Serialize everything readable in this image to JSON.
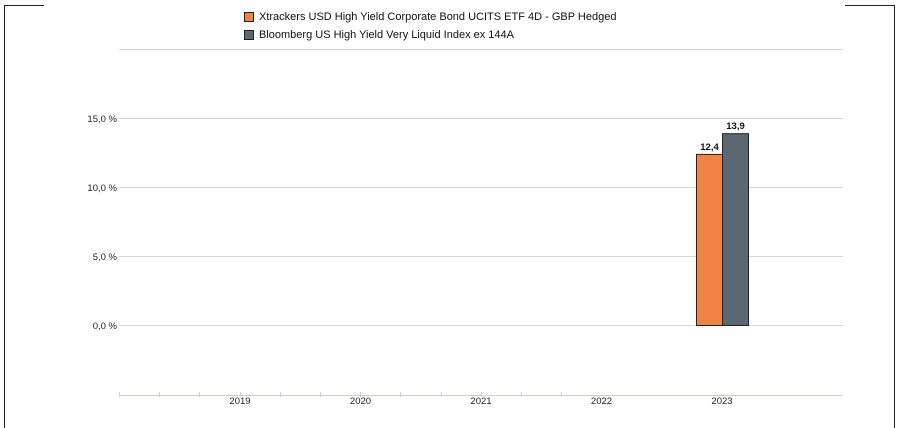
{
  "chart_data": {
    "type": "bar",
    "categories": [
      "2019",
      "2020",
      "2021",
      "2022",
      "2023"
    ],
    "series": [
      {
        "name": "Xtrackers USD High Yield Corporate Bond UCITS ETF 4D - GBP Hedged",
        "color": "#f08446",
        "values": [
          null,
          null,
          null,
          null,
          12.4
        ],
        "labels": [
          "",
          "",
          "",
          "",
          "12,4"
        ]
      },
      {
        "name": "Bloomberg US High Yield Very Liquid Index ex 144A",
        "color": "#5b6873",
        "values": [
          null,
          null,
          null,
          null,
          13.9
        ],
        "labels": [
          "",
          "",
          "",
          "",
          "13,9"
        ]
      }
    ],
    "yticks": [
      {
        "value": 0,
        "label": "0,0 %"
      },
      {
        "value": 5,
        "label": "5,0 %"
      },
      {
        "value": 10,
        "label": "10,0 %"
      },
      {
        "value": 15,
        "label": "15,0 %"
      }
    ],
    "ylim": [
      -5,
      20
    ],
    "grid": true,
    "legend_position": "top"
  }
}
